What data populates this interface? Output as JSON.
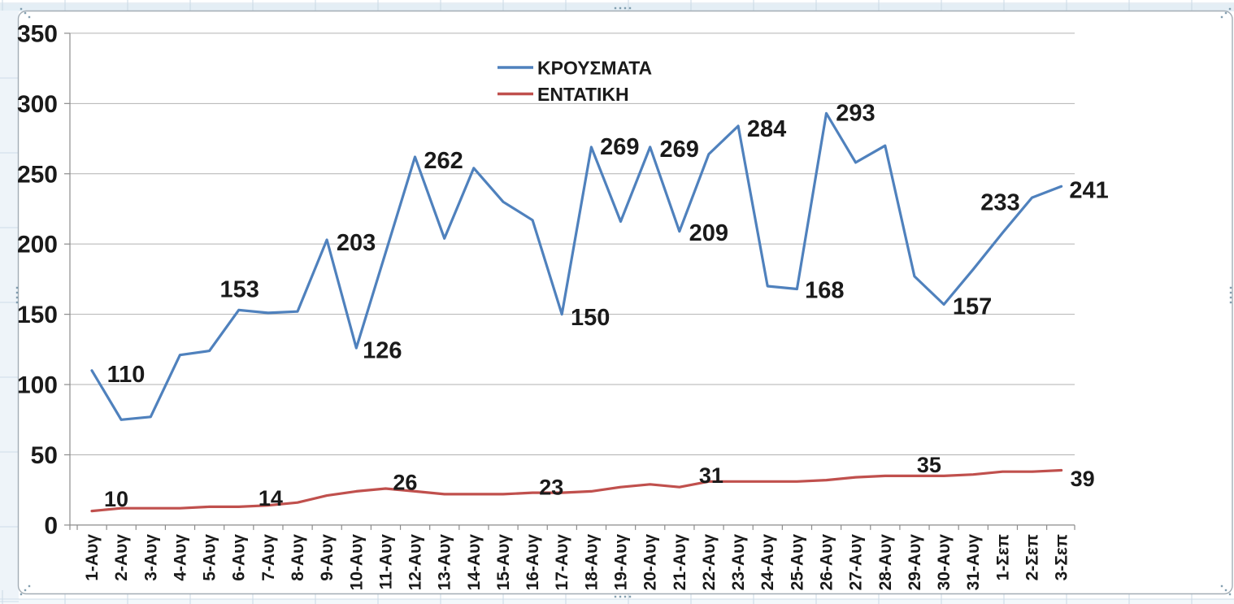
{
  "app_context": "excel-embedded-chart",
  "chart": {
    "selection_handles": [
      "top-left",
      "top-center",
      "top-right",
      "left-middle",
      "right-middle",
      "bottom-left",
      "bottom-center",
      "bottom-right"
    ],
    "frame_border_color": "#a3adb5",
    "background_color": "#ffffff",
    "gridline_color": "#b2b2b2",
    "axis_color": "#8c8c8c",
    "label_color": "#1a1a1a"
  },
  "chart_data": {
    "type": "line",
    "title": "",
    "xlabel": "",
    "ylabel": "",
    "ylim": [
      0,
      350
    ],
    "yticks": [
      0,
      50,
      100,
      150,
      200,
      250,
      300,
      350
    ],
    "grid": true,
    "legend_position": "top-center",
    "categories": [
      "1-Αυγ",
      "2-Αυγ",
      "3-Αυγ",
      "4-Αυγ",
      "5-Αυγ",
      "6-Αυγ",
      "7-Αυγ",
      "8-Αυγ",
      "9-Αυγ",
      "10-Αυγ",
      "11-Αυγ",
      "12-Αυγ",
      "13-Αυγ",
      "14-Αυγ",
      "15-Αυγ",
      "16-Αυγ",
      "17-Αυγ",
      "18-Αυγ",
      "19-Αυγ",
      "20-Αυγ",
      "21-Αυγ",
      "22-Αυγ",
      "23-Αυγ",
      "24-Αυγ",
      "25-Αυγ",
      "26-Αυγ",
      "27-Αυγ",
      "28-Αυγ",
      "29-Αυγ",
      "30-Αυγ",
      "31-Αυγ",
      "1-Σεπ",
      "2-Σεπ",
      "3-Σεπ"
    ],
    "series": [
      {
        "name": "ΚΡΟΥΣΜΑΤΑ",
        "color": "#4F81BD",
        "values": [
          110,
          75,
          77,
          121,
          124,
          153,
          151,
          152,
          203,
          126,
          194,
          262,
          204,
          254,
          230,
          217,
          150,
          269,
          216,
          269,
          209,
          264,
          284,
          170,
          168,
          293,
          258,
          270,
          177,
          157,
          182,
          208,
          233,
          241
        ],
        "labels": [
          {
            "index": 0,
            "text": "110"
          },
          {
            "index": 5,
            "text": "153"
          },
          {
            "index": 8,
            "text": "203"
          },
          {
            "index": 9,
            "text": "126"
          },
          {
            "index": 11,
            "text": "262"
          },
          {
            "index": 16,
            "text": "150"
          },
          {
            "index": 17,
            "text": "269"
          },
          {
            "index": 19,
            "text": "269"
          },
          {
            "index": 20,
            "text": "209"
          },
          {
            "index": 22,
            "text": "284"
          },
          {
            "index": 24,
            "text": "168"
          },
          {
            "index": 25,
            "text": "293"
          },
          {
            "index": 29,
            "text": "157"
          },
          {
            "index": 32,
            "text": "233"
          },
          {
            "index": 33,
            "text": "241"
          }
        ]
      },
      {
        "name": "ΕΝΤΑΤΙΚΗ",
        "color": "#C0504D",
        "values": [
          10,
          12,
          12,
          12,
          13,
          13,
          14,
          16,
          21,
          24,
          26,
          24,
          22,
          22,
          22,
          23,
          23,
          24,
          27,
          29,
          27,
          31,
          31,
          31,
          31,
          32,
          34,
          35,
          35,
          35,
          36,
          38,
          38,
          39
        ],
        "labels": [
          {
            "index": 0,
            "text": "10"
          },
          {
            "index": 6,
            "text": "14"
          },
          {
            "index": 10,
            "text": "26"
          },
          {
            "index": 16,
            "text": "23"
          },
          {
            "index": 21,
            "text": "31"
          },
          {
            "index": 28,
            "text": "35"
          },
          {
            "index": 33,
            "text": "39"
          }
        ]
      }
    ]
  }
}
